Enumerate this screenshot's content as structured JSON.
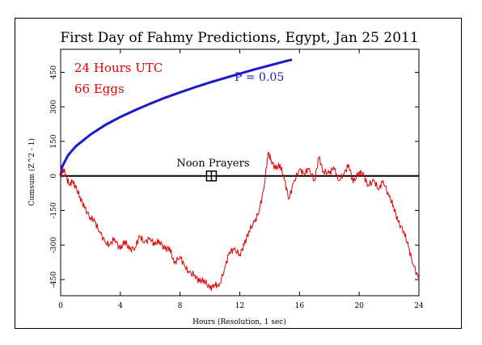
{
  "chart_data": {
    "type": "line",
    "title": "First Day of Fahmy Predictions, Egypt, Jan 25 2011",
    "xlabel": "Hours (Resolution, 1 sec)",
    "ylabel": "Cumsum (Z^2 - 1)",
    "xlim": [
      0,
      24
    ],
    "ylim": [
      -520,
      550
    ],
    "x_ticks": [
      0,
      4,
      8,
      12,
      16,
      20,
      24
    ],
    "y_ticks": [
      -450,
      -300,
      -150,
      0,
      150,
      300,
      450
    ],
    "grid": false,
    "annotations": {
      "duration": "24 Hours UTC",
      "eggs": "66 Eggs",
      "probability": "P = 0.05",
      "event": "Noon Prayers",
      "event_x": 10.1,
      "event_y": 0
    },
    "series": [
      {
        "role": "probability envelope",
        "color": "#1a1acc",
        "x": [
          0,
          0.1,
          0.5,
          1,
          2,
          3,
          4,
          5,
          6,
          7,
          8,
          9,
          10,
          11,
          12,
          13,
          14,
          15,
          15.5
        ],
        "values": [
          0,
          40,
          90,
          128,
          180,
          222,
          256,
          286,
          314,
          340,
          363,
          385,
          406,
          425,
          444,
          463,
          480,
          497,
          505
        ]
      },
      {
        "role": "cumulative deviation",
        "color": "#e00000",
        "x": [
          0,
          0.2,
          0.4,
          0.6,
          0.8,
          1.0,
          1.3,
          1.6,
          2.0,
          2.3,
          2.6,
          3.0,
          3.3,
          3.6,
          4.0,
          4.3,
          4.6,
          5.0,
          5.3,
          5.6,
          6.0,
          6.3,
          6.6,
          7.0,
          7.3,
          7.6,
          8.0,
          8.3,
          8.6,
          9.0,
          9.3,
          9.6,
          10.0,
          10.3,
          10.6,
          11.0,
          11.3,
          11.6,
          12.0,
          12.3,
          12.6,
          13.0,
          13.3,
          13.6,
          13.9,
          14.1,
          14.4,
          14.7,
          15.0,
          15.3,
          15.6,
          16.0,
          16.3,
          16.6,
          17.0,
          17.3,
          17.6,
          18.0,
          18.3,
          18.6,
          19.0,
          19.3,
          19.6,
          20.0,
          20.3,
          20.6,
          21.0,
          21.3,
          21.6,
          22.0,
          22.3,
          22.6,
          23.0,
          23.3,
          23.6,
          24.0
        ],
        "values": [
          0,
          30,
          -10,
          -40,
          -20,
          -50,
          -90,
          -140,
          -180,
          -200,
          -240,
          -290,
          -300,
          -270,
          -320,
          -280,
          -320,
          -310,
          -260,
          -290,
          -270,
          -300,
          -280,
          -320,
          -310,
          -380,
          -350,
          -390,
          -420,
          -430,
          -460,
          -450,
          -490,
          -470,
          -480,
          -400,
          -330,
          -320,
          -340,
          -300,
          -240,
          -200,
          -150,
          -60,
          100,
          70,
          30,
          50,
          -20,
          -100,
          -30,
          30,
          10,
          30,
          -20,
          80,
          20,
          10,
          40,
          -20,
          10,
          50,
          -30,
          20,
          0,
          -40,
          -20,
          -60,
          -20,
          -90,
          -130,
          -200,
          -240,
          -310,
          -380,
          -450
        ]
      }
    ]
  }
}
